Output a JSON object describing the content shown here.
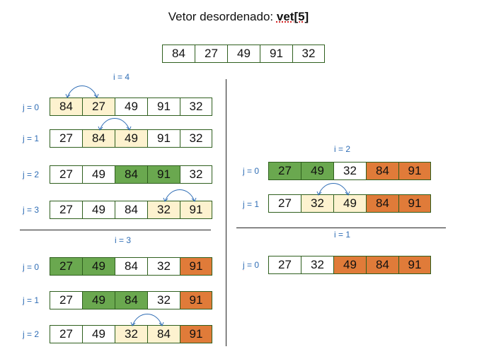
{
  "title_prefix": "Vetor desordenado: ",
  "title_var": "vet[5]",
  "initial": [
    {
      "v": "84",
      "c": ""
    },
    {
      "v": "27",
      "c": ""
    },
    {
      "v": "49",
      "c": ""
    },
    {
      "v": "91",
      "c": ""
    },
    {
      "v": "32",
      "c": ""
    }
  ],
  "j_prefix": "j",
  "j_suffixes": [
    " = 0",
    " = 1",
    " = 2",
    " = 3"
  ],
  "i_labels": [
    "i = 4",
    "i = 3",
    "i = 2",
    "i = 1"
  ],
  "rows": {
    "i4_j0": [
      {
        "v": "84",
        "c": "y"
      },
      {
        "v": "27",
        "c": "y"
      },
      {
        "v": "49",
        "c": ""
      },
      {
        "v": "91",
        "c": ""
      },
      {
        "v": "32",
        "c": ""
      }
    ],
    "i4_j1": [
      {
        "v": "27",
        "c": ""
      },
      {
        "v": "84",
        "c": "y"
      },
      {
        "v": "49",
        "c": "y"
      },
      {
        "v": "91",
        "c": ""
      },
      {
        "v": "32",
        "c": ""
      }
    ],
    "i4_j2": [
      {
        "v": "27",
        "c": ""
      },
      {
        "v": "49",
        "c": ""
      },
      {
        "v": "84",
        "c": "g"
      },
      {
        "v": "91",
        "c": "g"
      },
      {
        "v": "32",
        "c": ""
      }
    ],
    "i4_j3": [
      {
        "v": "27",
        "c": ""
      },
      {
        "v": "49",
        "c": ""
      },
      {
        "v": "84",
        "c": ""
      },
      {
        "v": "32",
        "c": "y"
      },
      {
        "v": "91",
        "c": "y"
      }
    ],
    "i3_j0": [
      {
        "v": "27",
        "c": "g"
      },
      {
        "v": "49",
        "c": "g"
      },
      {
        "v": "84",
        "c": ""
      },
      {
        "v": "32",
        "c": ""
      },
      {
        "v": "91",
        "c": "o"
      }
    ],
    "i3_j1": [
      {
        "v": "27",
        "c": ""
      },
      {
        "v": "49",
        "c": "g"
      },
      {
        "v": "84",
        "c": "g"
      },
      {
        "v": "32",
        "c": ""
      },
      {
        "v": "91",
        "c": "o"
      }
    ],
    "i3_j2": [
      {
        "v": "27",
        "c": ""
      },
      {
        "v": "49",
        "c": ""
      },
      {
        "v": "32",
        "c": "y"
      },
      {
        "v": "84",
        "c": "y"
      },
      {
        "v": "91",
        "c": "o"
      }
    ],
    "i2_j0": [
      {
        "v": "27",
        "c": "g"
      },
      {
        "v": "49",
        "c": "g"
      },
      {
        "v": "32",
        "c": ""
      },
      {
        "v": "84",
        "c": "o"
      },
      {
        "v": "91",
        "c": "o"
      }
    ],
    "i2_j1": [
      {
        "v": "27",
        "c": ""
      },
      {
        "v": "32",
        "c": "y"
      },
      {
        "v": "49",
        "c": "y"
      },
      {
        "v": "84",
        "c": "o"
      },
      {
        "v": "91",
        "c": "o"
      }
    ],
    "i1_j0": [
      {
        "v": "27",
        "c": ""
      },
      {
        "v": "32",
        "c": ""
      },
      {
        "v": "49",
        "c": "o"
      },
      {
        "v": "84",
        "c": "o"
      },
      {
        "v": "91",
        "c": "o"
      }
    ]
  },
  "colors": {
    "compare": "#fdf2cf",
    "no_swap": "#6aa84f",
    "sorted": "#e07b39",
    "label": "#2f6db5",
    "border": "#2f5f1e"
  }
}
